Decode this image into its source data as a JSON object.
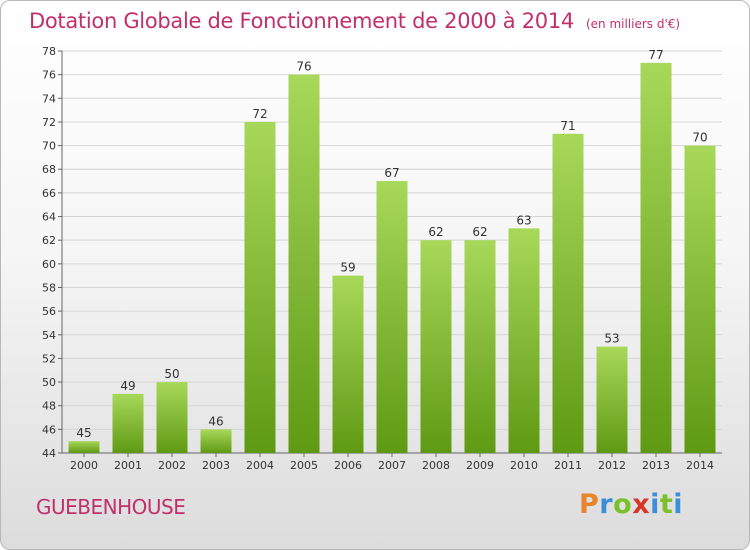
{
  "header": {
    "title": "Dotation Globale de Fonctionnement de 2000 à 2014",
    "unit": "(en milliers d'€)"
  },
  "footer": {
    "city": "GUEBENHOUSE",
    "logo_letters": [
      "P",
      "r",
      "o",
      "x",
      "i",
      "t",
      "i"
    ],
    "logo_colors": [
      "#e8842c",
      "#3a8fd8",
      "#7bbf2a",
      "#d8362a",
      "#3a8fd8",
      "#7bbf2a",
      "#3a8fd8"
    ]
  },
  "colors": {
    "bar_light": "#a8d85a",
    "bar_dark": "#5f9a14",
    "title": "#c0306a",
    "grid": "#d6d6d6"
  },
  "chart_data": {
    "type": "bar",
    "title": "Dotation Globale de Fonctionnement de 2000 à 2014",
    "subtitle": "(en milliers d'€)",
    "categories": [
      "2000",
      "2001",
      "2002",
      "2003",
      "2004",
      "2005",
      "2006",
      "2007",
      "2008",
      "2009",
      "2010",
      "2011",
      "2012",
      "2013",
      "2014"
    ],
    "values": [
      45,
      49,
      50,
      46,
      72,
      76,
      59,
      67,
      62,
      62,
      63,
      71,
      53,
      77,
      70
    ],
    "ylim": [
      44,
      78
    ],
    "yticks": [
      44,
      46,
      48,
      50,
      52,
      54,
      56,
      58,
      60,
      62,
      64,
      66,
      68,
      70,
      72,
      74,
      76,
      78
    ],
    "grid": true,
    "data_labels": true
  }
}
